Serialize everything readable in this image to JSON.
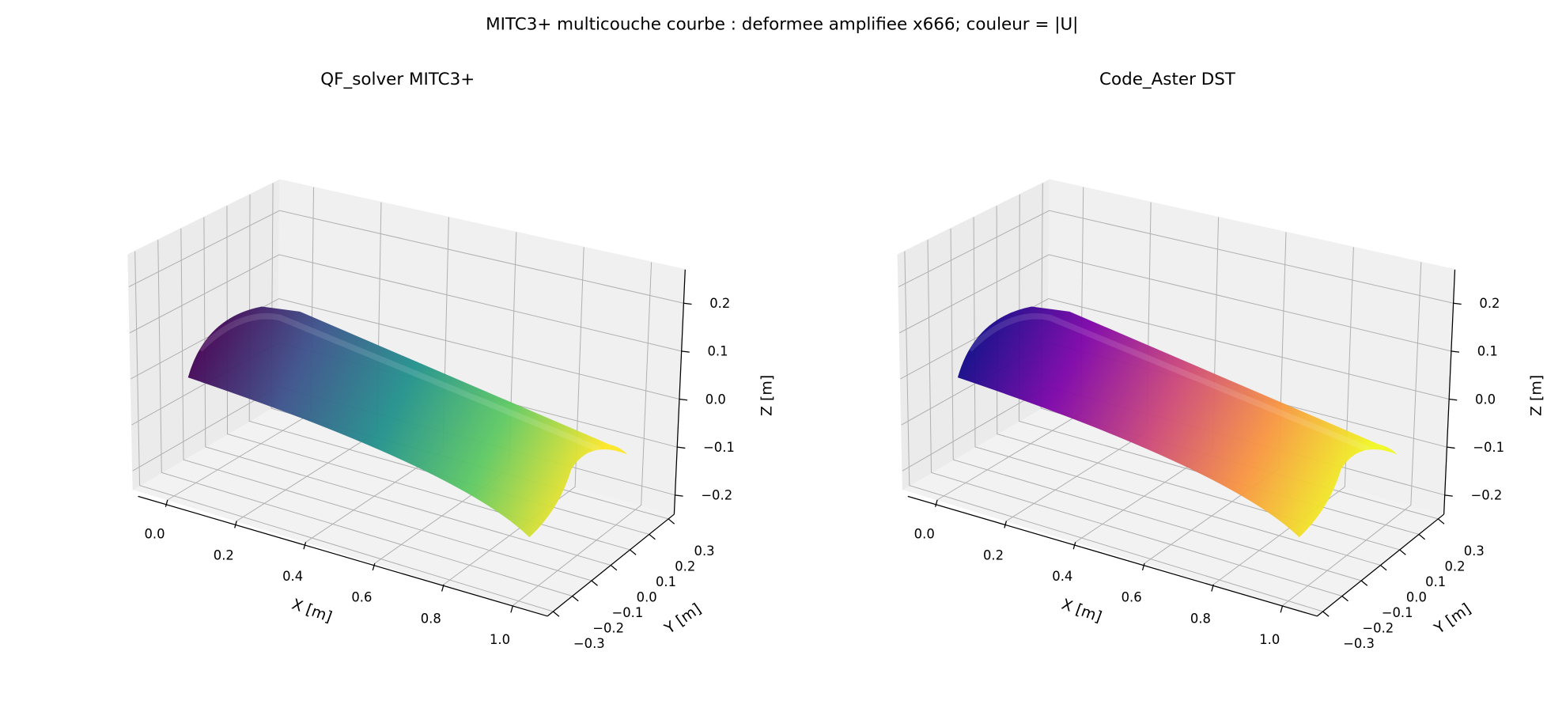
{
  "title": "MITC3+ multicouche courbe : deformee amplifiee x666; couleur = |U|",
  "chart_data": [
    {
      "type": "surface3d",
      "title": "QF_solver MITC3+",
      "xlabel": "X [m]",
      "ylabel": "Y [m]",
      "zlabel": "Z [m]",
      "colormap": "viridis",
      "grid": true,
      "xlim": [
        -0.1,
        1.1
      ],
      "ylim": [
        -0.33,
        0.33
      ],
      "zlim": [
        -0.24,
        0.27
      ],
      "xticks": [
        {
          "value": 0,
          "label": "0.0"
        },
        0.2,
        0.4,
        0.6,
        0.8,
        {
          "value": 1,
          "label": "1.0"
        }
      ],
      "yticks": [
        {
          "value": -0.3,
          "label": "−0.3"
        },
        {
          "value": -0.2,
          "label": "−0.2"
        },
        {
          "value": -0.1,
          "label": "−0.1"
        },
        {
          "value": 0,
          "label": "0.0"
        },
        0.1,
        0.2,
        0.3
      ],
      "zticks": [
        {
          "value": -0.2,
          "label": "−0.2"
        },
        {
          "value": -0.1,
          "label": "−0.1"
        },
        {
          "value": 0,
          "label": "0.0"
        },
        0.1,
        0.2
      ]
    },
    {
      "type": "surface3d",
      "title": "Code_Aster DST",
      "xlabel": "X [m]",
      "ylabel": "Y [m]",
      "zlabel": "Z [m]",
      "colormap": "plasma",
      "grid": true,
      "xlim": [
        -0.1,
        1.1
      ],
      "ylim": [
        -0.33,
        0.33
      ],
      "zlim": [
        -0.24,
        0.27
      ],
      "xticks": [
        {
          "value": 0,
          "label": "0.0"
        },
        0.2,
        0.4,
        0.6,
        0.8,
        {
          "value": 1,
          "label": "1.0"
        }
      ],
      "yticks": [
        {
          "value": -0.3,
          "label": "−0.3"
        },
        {
          "value": -0.2,
          "label": "−0.2"
        },
        {
          "value": -0.1,
          "label": "−0.1"
        },
        {
          "value": 0,
          "label": "0.0"
        },
        0.1,
        0.2,
        0.3
      ],
      "zticks": [
        {
          "value": -0.2,
          "label": "−0.2"
        },
        {
          "value": -0.1,
          "label": "−0.1"
        },
        {
          "value": 0,
          "label": "0.0"
        },
        0.1,
        0.2
      ]
    }
  ]
}
